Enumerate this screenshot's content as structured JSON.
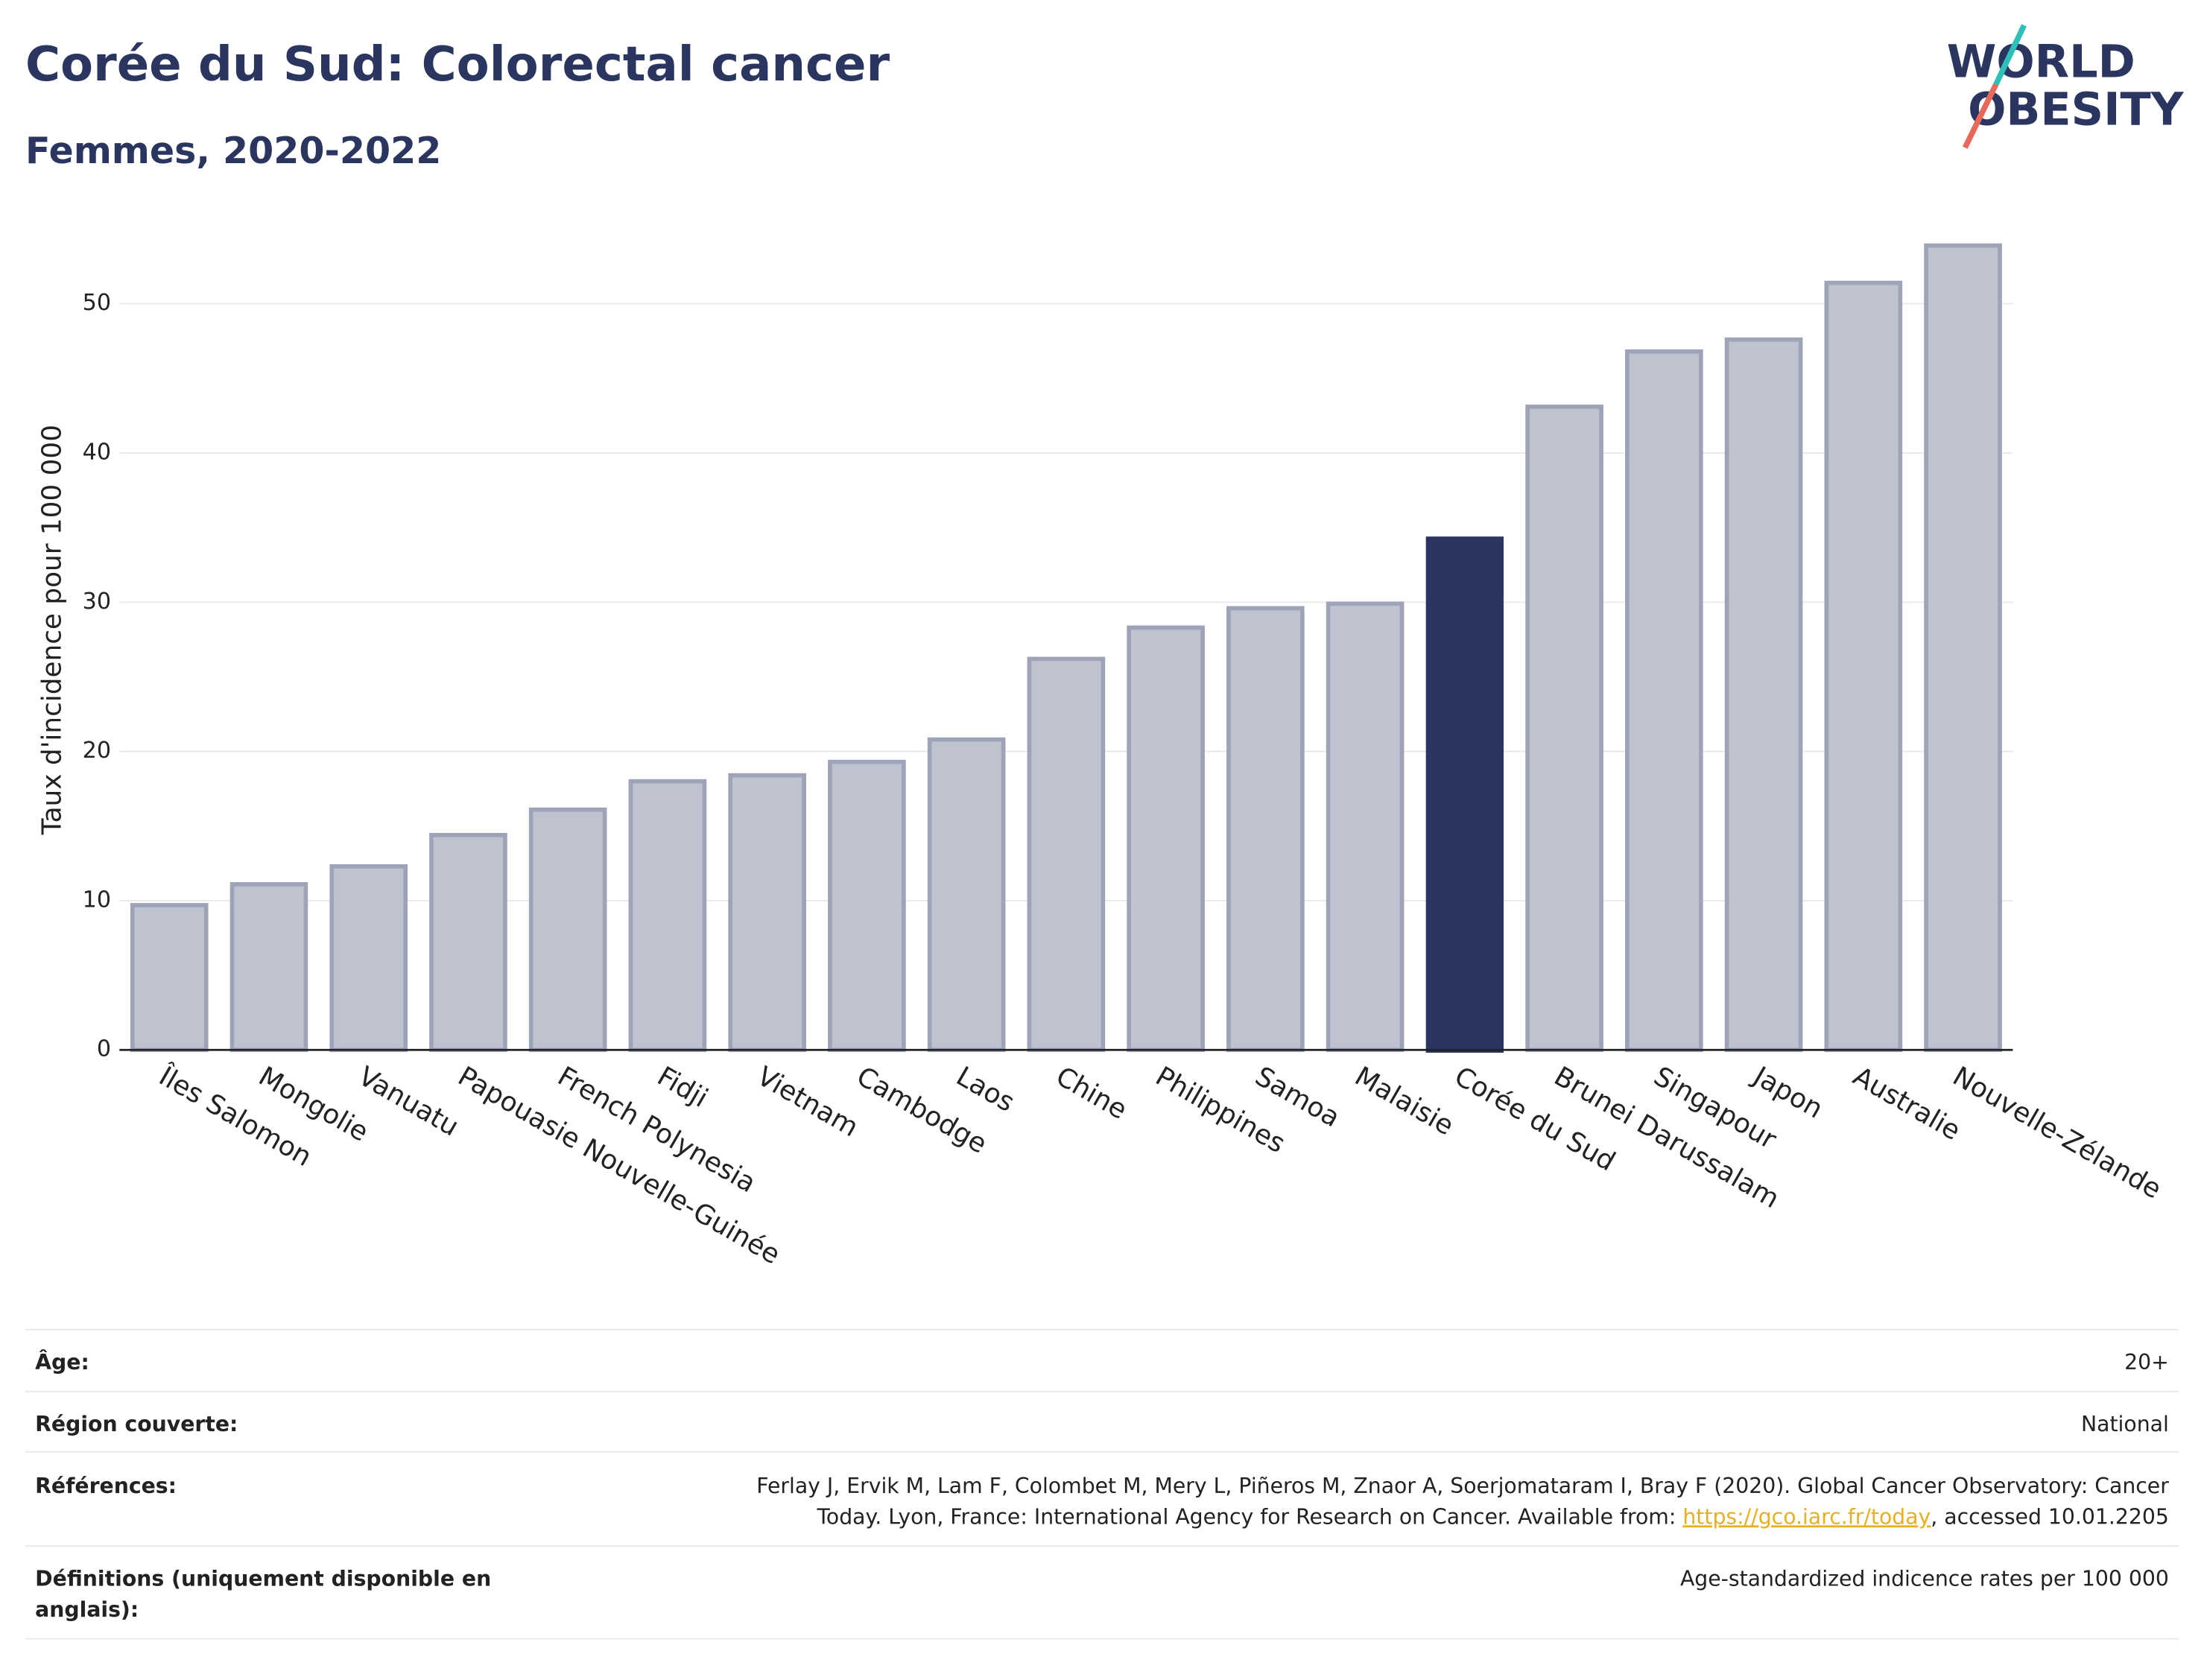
{
  "chart_data": {
    "type": "bar",
    "title": "Corée du Sud: Colorectal cancer",
    "subtitle": "Femmes, 2020-2022",
    "y_label": "Taux d'incidence pour 100 000",
    "categories": [
      "Îles Salomon",
      "Mongolie",
      "Vanuatu",
      "Papouasie Nouvelle-Guinée",
      "French Polynesia",
      "Fidji",
      "Vietnam",
      "Cambodge",
      "Laos",
      "Chine",
      "Philippines",
      "Samoa",
      "Malaisie",
      "Corée du Sud",
      "Brunei Darussalam",
      "Singapour",
      "Japon",
      "Australie",
      "Nouvelle-Zélande"
    ],
    "values": [
      9.7,
      11.1,
      12.3,
      14.4,
      16.1,
      18.0,
      18.4,
      19.3,
      20.8,
      26.2,
      28.3,
      29.6,
      29.9,
      34.4,
      43.1,
      46.8,
      47.6,
      51.4,
      53.9
    ],
    "color": "#bfc3d0",
    "edge_color": "#9ea3b8",
    "highlight": "Corée du Sud",
    "highlight_color": "#2a3560",
    "ylim": [
      0,
      55
    ],
    "yticks": [
      0,
      10,
      20,
      30,
      40,
      50
    ],
    "grid": true
  },
  "logo": {
    "line1": "WORLD",
    "line2": "OBESITY"
  },
  "footer": {
    "age": {
      "label": "Âge:",
      "value": "20+"
    },
    "region": {
      "label": "Région couverte:",
      "value": "National"
    },
    "references": {
      "label": "Références:",
      "line1": "Ferlay J, Ervik M, Lam F, Colombet M, Mery L, Piñeros M, Znaor A, Soerjomataram I, Bray F (2020). Global Cancer Observatory: Cancer",
      "line2_before": "Today. Lyon, France: International Agency for Research on Cancer. Available from: ",
      "link": "https://gco.iarc.fr/today",
      "line2_after": ", accessed 10.01.2205"
    },
    "definitions": {
      "label_line1": "Définitions (uniquement disponible en",
      "label_line2": "anglais):",
      "value": "Age-standardized indicence rates per 100 000"
    }
  }
}
